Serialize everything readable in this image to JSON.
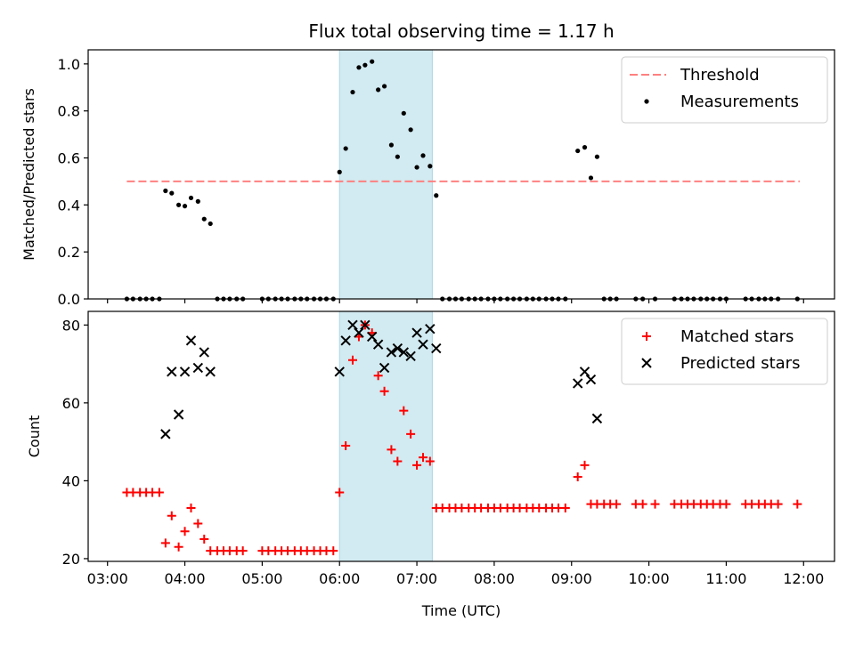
{
  "chart_data": {
    "title": "Flux total observing time = 1.17 h",
    "shaded_interval": {
      "start": 6.0,
      "end": 7.2,
      "color": "#add8e6"
    },
    "panels": [
      {
        "type": "scatter",
        "ylabel": "Matched/Predicted stars",
        "ylim": [
          0,
          1.06
        ],
        "yticks": [
          "0.0",
          "0.2",
          "0.4",
          "0.6",
          "0.8",
          "1.0"
        ],
        "legend_placement": "top-right",
        "threshold": {
          "name": "Threshold",
          "value": 0.5,
          "x": [
            3.25,
            11.95
          ],
          "color": "#ff8080"
        },
        "series": [
          {
            "name": "Measurements",
            "color": "#000000",
            "points": [
              [
                3.25,
                0
              ],
              [
                3.33,
                0
              ],
              [
                3.42,
                0
              ],
              [
                3.5,
                0
              ],
              [
                3.58,
                0
              ],
              [
                3.67,
                0
              ],
              [
                3.75,
                0.46
              ],
              [
                3.83,
                0.45
              ],
              [
                3.92,
                0.4
              ],
              [
                4.0,
                0.395
              ],
              [
                4.08,
                0.43
              ],
              [
                4.17,
                0.415
              ],
              [
                4.25,
                0.34
              ],
              [
                4.33,
                0.32
              ],
              [
                4.42,
                0
              ],
              [
                4.5,
                0
              ],
              [
                4.58,
                0
              ],
              [
                4.67,
                0
              ],
              [
                4.75,
                0
              ],
              [
                5.0,
                0
              ],
              [
                5.08,
                0
              ],
              [
                5.17,
                0
              ],
              [
                5.25,
                0
              ],
              [
                5.33,
                0
              ],
              [
                5.42,
                0
              ],
              [
                5.5,
                0
              ],
              [
                5.58,
                0
              ],
              [
                5.67,
                0
              ],
              [
                5.75,
                0
              ],
              [
                5.83,
                0
              ],
              [
                5.92,
                0
              ],
              [
                6.0,
                0.54
              ],
              [
                6.08,
                0.64
              ],
              [
                6.17,
                0.88
              ],
              [
                6.25,
                0.985
              ],
              [
                6.33,
                0.995
              ],
              [
                6.42,
                1.01
              ],
              [
                6.5,
                0.89
              ],
              [
                6.58,
                0.905
              ],
              [
                6.67,
                0.655
              ],
              [
                6.75,
                0.605
              ],
              [
                6.83,
                0.79
              ],
              [
                6.92,
                0.72
              ],
              [
                7.0,
                0.56
              ],
              [
                7.08,
                0.61
              ],
              [
                7.17,
                0.565
              ],
              [
                7.25,
                0.44
              ],
              [
                7.33,
                0
              ],
              [
                7.42,
                0
              ],
              [
                7.5,
                0
              ],
              [
                7.58,
                0
              ],
              [
                7.67,
                0
              ],
              [
                7.75,
                0
              ],
              [
                7.83,
                0
              ],
              [
                7.92,
                0
              ],
              [
                8.0,
                0
              ],
              [
                8.08,
                0
              ],
              [
                8.17,
                0
              ],
              [
                8.25,
                0
              ],
              [
                8.33,
                0
              ],
              [
                8.42,
                0
              ],
              [
                8.5,
                0
              ],
              [
                8.58,
                0
              ],
              [
                8.67,
                0
              ],
              [
                8.75,
                0
              ],
              [
                8.83,
                0
              ],
              [
                8.92,
                0
              ],
              [
                9.08,
                0.63
              ],
              [
                9.17,
                0.645
              ],
              [
                9.25,
                0.515
              ],
              [
                9.33,
                0.605
              ],
              [
                9.42,
                0
              ],
              [
                9.5,
                0
              ],
              [
                9.58,
                0
              ],
              [
                9.83,
                0
              ],
              [
                9.92,
                0
              ],
              [
                10.08,
                0
              ],
              [
                10.33,
                0
              ],
              [
                10.42,
                0
              ],
              [
                10.5,
                0
              ],
              [
                10.58,
                0
              ],
              [
                10.67,
                0
              ],
              [
                10.75,
                0
              ],
              [
                10.83,
                0
              ],
              [
                10.92,
                0
              ],
              [
                11.0,
                0
              ],
              [
                11.25,
                0
              ],
              [
                11.33,
                0
              ],
              [
                11.42,
                0
              ],
              [
                11.5,
                0
              ],
              [
                11.58,
                0
              ],
              [
                11.67,
                0
              ],
              [
                11.92,
                0
              ]
            ]
          }
        ]
      },
      {
        "type": "scatter",
        "xlabel": "Time (UTC)",
        "ylabel": "Count",
        "ylim": [
          19.3,
          83.5
        ],
        "yticks": [
          "20",
          "40",
          "60",
          "80"
        ],
        "legend_placement": "top-right",
        "series": [
          {
            "name": "Matched stars",
            "marker": "+",
            "color": "#ff0000",
            "points": [
              [
                3.25,
                37
              ],
              [
                3.33,
                37
              ],
              [
                3.42,
                37
              ],
              [
                3.5,
                37
              ],
              [
                3.58,
                37
              ],
              [
                3.67,
                37
              ],
              [
                3.75,
                24
              ],
              [
                3.83,
                31
              ],
              [
                3.92,
                23
              ],
              [
                4.0,
                27
              ],
              [
                4.08,
                33
              ],
              [
                4.17,
                29
              ],
              [
                4.25,
                25
              ],
              [
                4.33,
                22
              ],
              [
                4.42,
                22
              ],
              [
                4.5,
                22
              ],
              [
                4.58,
                22
              ],
              [
                4.67,
                22
              ],
              [
                4.75,
                22
              ],
              [
                5.0,
                22
              ],
              [
                5.08,
                22
              ],
              [
                5.17,
                22
              ],
              [
                5.25,
                22
              ],
              [
                5.33,
                22
              ],
              [
                5.42,
                22
              ],
              [
                5.5,
                22
              ],
              [
                5.58,
                22
              ],
              [
                5.67,
                22
              ],
              [
                5.75,
                22
              ],
              [
                5.83,
                22
              ],
              [
                5.92,
                22
              ],
              [
                6.0,
                37
              ],
              [
                6.08,
                49
              ],
              [
                6.17,
                71
              ],
              [
                6.25,
                77
              ],
              [
                6.33,
                80
              ],
              [
                6.42,
                78
              ],
              [
                6.5,
                67
              ],
              [
                6.58,
                63
              ],
              [
                6.67,
                48
              ],
              [
                6.75,
                45
              ],
              [
                6.83,
                58
              ],
              [
                6.92,
                52
              ],
              [
                7.0,
                44
              ],
              [
                7.08,
                46
              ],
              [
                7.17,
                45
              ],
              [
                7.25,
                33
              ],
              [
                7.33,
                33
              ],
              [
                7.42,
                33
              ],
              [
                7.5,
                33
              ],
              [
                7.58,
                33
              ],
              [
                7.67,
                33
              ],
              [
                7.75,
                33
              ],
              [
                7.83,
                33
              ],
              [
                7.92,
                33
              ],
              [
                8.0,
                33
              ],
              [
                8.08,
                33
              ],
              [
                8.17,
                33
              ],
              [
                8.25,
                33
              ],
              [
                8.33,
                33
              ],
              [
                8.42,
                33
              ],
              [
                8.5,
                33
              ],
              [
                8.58,
                33
              ],
              [
                8.67,
                33
              ],
              [
                8.75,
                33
              ],
              [
                8.83,
                33
              ],
              [
                8.92,
                33
              ],
              [
                9.08,
                41
              ],
              [
                9.17,
                44
              ],
              [
                9.25,
                34
              ],
              [
                9.33,
                34
              ],
              [
                9.42,
                34
              ],
              [
                9.5,
                34
              ],
              [
                9.58,
                34
              ],
              [
                9.83,
                34
              ],
              [
                9.92,
                34
              ],
              [
                10.08,
                34
              ],
              [
                10.33,
                34
              ],
              [
                10.42,
                34
              ],
              [
                10.5,
                34
              ],
              [
                10.58,
                34
              ],
              [
                10.67,
                34
              ],
              [
                10.75,
                34
              ],
              [
                10.83,
                34
              ],
              [
                10.92,
                34
              ],
              [
                11.0,
                34
              ],
              [
                11.25,
                34
              ],
              [
                11.33,
                34
              ],
              [
                11.42,
                34
              ],
              [
                11.5,
                34
              ],
              [
                11.58,
                34
              ],
              [
                11.67,
                34
              ],
              [
                11.92,
                34
              ]
            ]
          },
          {
            "name": "Predicted stars",
            "marker": "x",
            "color": "#000000",
            "points": [
              [
                3.75,
                52
              ],
              [
                3.83,
                68
              ],
              [
                3.92,
                57
              ],
              [
                4.0,
                68
              ],
              [
                4.08,
                76
              ],
              [
                4.17,
                69
              ],
              [
                4.25,
                73
              ],
              [
                4.33,
                68
              ],
              [
                6.0,
                68
              ],
              [
                6.08,
                76
              ],
              [
                6.17,
                80
              ],
              [
                6.25,
                78
              ],
              [
                6.33,
                80
              ],
              [
                6.42,
                77
              ],
              [
                6.5,
                75
              ],
              [
                6.58,
                69
              ],
              [
                6.67,
                73
              ],
              [
                6.75,
                74
              ],
              [
                6.83,
                73
              ],
              [
                6.92,
                72
              ],
              [
                7.0,
                78
              ],
              [
                7.08,
                75
              ],
              [
                7.17,
                79
              ],
              [
                7.25,
                74
              ],
              [
                9.08,
                65
              ],
              [
                9.17,
                68
              ],
              [
                9.25,
                66
              ],
              [
                9.33,
                56
              ]
            ]
          }
        ]
      }
    ],
    "x_axis": {
      "xlim": [
        2.75,
        12.4
      ],
      "ticks": [
        {
          "value": 3,
          "label": "03:00"
        },
        {
          "value": 4,
          "label": "04:00"
        },
        {
          "value": 5,
          "label": "05:00"
        },
        {
          "value": 6,
          "label": "06:00"
        },
        {
          "value": 7,
          "label": "07:00"
        },
        {
          "value": 8,
          "label": "08:00"
        },
        {
          "value": 9,
          "label": "09:00"
        },
        {
          "value": 10,
          "label": "10:00"
        },
        {
          "value": 11,
          "label": "11:00"
        },
        {
          "value": 12,
          "label": "12:00"
        }
      ]
    }
  }
}
